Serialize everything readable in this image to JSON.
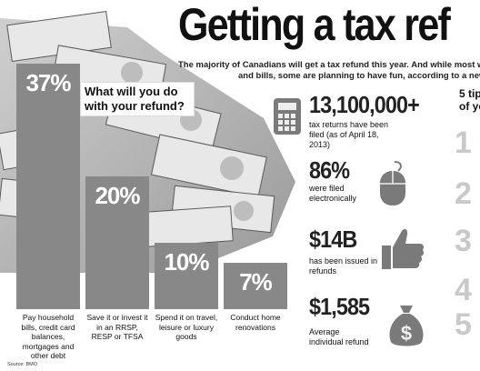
{
  "headline": "Getting a tax ref",
  "intro": {
    "line1": "The majority of Canadians will get a tax refund this year. And while most will be resp",
    "line2": "and bills, some are planning to have fun, according to a new BMO"
  },
  "question": "What will you do with your refund?",
  "chart_data": {
    "type": "bar",
    "title": "What will you do with your refund?",
    "categories": [
      "Pay household bills, credit card balances, mortgages and other debt",
      "Save it or invest it in an RRSP, RESP or TFSA",
      "Spend it on travel, leisure or luxury goods",
      "Conduct home renovations"
    ],
    "values": [
      37,
      20,
      10,
      7
    ],
    "value_labels": [
      "37%",
      "20%",
      "10%",
      "7%"
    ],
    "ylim": [
      0,
      37
    ],
    "grid": false,
    "bar_color": "#888888"
  },
  "source": "Source: BMO",
  "stats": [
    {
      "value": "13,100,000+",
      "text": "tax returns have been filed (as of April 18, 2013)",
      "icon": "calculator-icon"
    },
    {
      "value": "86%",
      "text": "were filed electronically",
      "icon": "mouse-icon"
    },
    {
      "value": "$14B",
      "text": "has been issued in refunds",
      "icon": "thumbs-up-icon"
    },
    {
      "value": "$1,585",
      "text": "Average individual refund",
      "icon": "money-bag-icon"
    }
  ],
  "tips": {
    "title_line1": "5 tip",
    "title_line2": "of yo",
    "numbers": [
      "1",
      "2",
      "3",
      "4",
      "5"
    ]
  },
  "colors": {
    "bar": "#888888",
    "icon": "#7a7a7a",
    "tip_number": "#c9c9c9"
  }
}
